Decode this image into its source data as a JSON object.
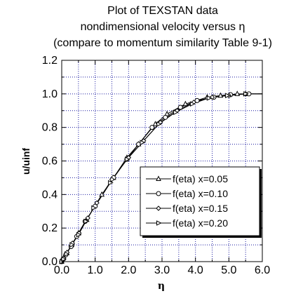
{
  "chart_data": {
    "type": "line",
    "title_lines": [
      "Plot of TEXSTAN data",
      "nondimensional velocity versus η",
      "(compare to momentum similarity Table 9-1)"
    ],
    "xlabel": "η",
    "ylabel": "u/uinf",
    "xlim": [
      0,
      6
    ],
    "ylim": [
      0,
      1.2
    ],
    "x_ticks": [
      "0.0",
      "1.0",
      "2.0",
      "3.0",
      "4.0",
      "5.0",
      "6.0"
    ],
    "y_ticks": [
      "0.0",
      "0.2",
      "0.4",
      "0.6",
      "0.8",
      "1.0",
      "1.2"
    ],
    "grid": true,
    "legend_position": "center-right",
    "colors": {
      "line": "#000000",
      "grid": "#1a1aa0",
      "axes": "#000000"
    },
    "series": [
      {
        "name": "f(eta) x=0.05",
        "marker": "triangle-up",
        "x": [
          0.0,
          0.05,
          0.15,
          0.3,
          0.5,
          0.75,
          1.2,
          1.55,
          1.95,
          2.3,
          2.8,
          3.15,
          3.7,
          4.35,
          4.75,
          5.25,
          5.5,
          6.0
        ],
        "y": [
          0.0,
          0.02,
          0.05,
          0.1,
          0.17,
          0.25,
          0.4,
          0.5,
          0.62,
          0.7,
          0.82,
          0.88,
          0.94,
          0.98,
          0.99,
          1.0,
          1.0,
          1.0
        ]
      },
      {
        "name": "f(eta) x=0.10",
        "marker": "circle",
        "x": [
          0.0,
          0.04,
          0.12,
          0.28,
          0.45,
          0.7,
          1.0,
          1.55,
          1.95,
          2.3,
          2.7,
          3.1,
          3.55,
          4.05,
          4.55,
          5.05,
          5.6,
          6.0
        ],
        "y": [
          0.0,
          0.015,
          0.04,
          0.09,
          0.15,
          0.24,
          0.33,
          0.5,
          0.61,
          0.7,
          0.8,
          0.86,
          0.92,
          0.96,
          0.98,
          0.995,
          1.0,
          1.0
        ]
      },
      {
        "name": "f(eta) x=0.15",
        "marker": "diamond",
        "x": [
          0.0,
          0.06,
          0.16,
          0.32,
          0.52,
          0.78,
          1.05,
          1.5,
          2.0,
          2.45,
          2.95,
          3.45,
          3.95,
          4.5,
          5.0,
          5.5,
          6.0
        ],
        "y": [
          0.0,
          0.02,
          0.055,
          0.11,
          0.17,
          0.26,
          0.35,
          0.49,
          0.62,
          0.72,
          0.83,
          0.9,
          0.95,
          0.98,
          0.99,
          1.0,
          1.0
        ]
      },
      {
        "name": "f(eta) x=0.20",
        "marker": "triangle-right",
        "x": [
          0.0,
          0.05,
          0.14,
          0.3,
          0.5,
          0.72,
          0.95,
          1.45,
          1.95,
          2.4,
          2.9,
          3.4,
          3.9,
          4.4,
          4.95,
          5.5,
          6.0
        ],
        "y": [
          0.0,
          0.015,
          0.045,
          0.1,
          0.16,
          0.24,
          0.32,
          0.47,
          0.61,
          0.71,
          0.82,
          0.89,
          0.94,
          0.975,
          0.99,
          1.0,
          1.0
        ]
      }
    ]
  }
}
